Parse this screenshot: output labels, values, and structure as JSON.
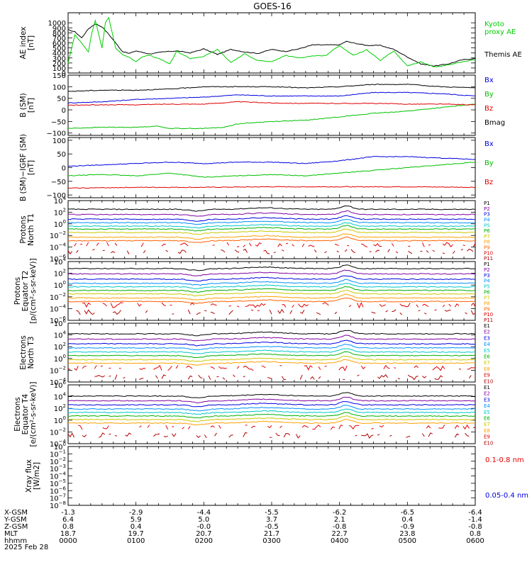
{
  "title": "GOES-16",
  "date": "2025 Feb 28",
  "chart_data": [
    {
      "type": "line",
      "ylabel": "AE index [nT]",
      "ylim": [
        0,
        1200
      ],
      "yticks": [
        "0",
        "100",
        "200",
        "300",
        "400",
        "500",
        "600",
        "700",
        "800",
        "900",
        "1000"
      ],
      "ytick_values": [
        0,
        100,
        200,
        300,
        400,
        500,
        600,
        700,
        800,
        900,
        1000
      ],
      "log": false,
      "legend": [
        {
          "label": "Kyoto",
          "color": "#00d000"
        },
        {
          "label": "proxy AE",
          "color": "#00d000"
        },
        {
          "label": "Themis AE",
          "color": "#000000"
        }
      ],
      "series": [
        {
          "name": "Themis AE",
          "color": "#000000",
          "x": [
            0,
            0.1,
            0.2,
            0.3,
            0.4,
            0.5,
            0.6,
            0.7,
            0.8,
            0.9,
            1.0,
            1.1,
            1.2,
            1.4,
            1.6,
            1.8,
            2.0,
            2.2,
            2.4,
            2.6,
            2.8,
            3.0,
            3.2,
            3.4,
            3.6,
            3.8,
            4.0,
            4.1,
            4.2,
            4.4,
            4.6,
            4.8,
            5.0,
            5.2,
            5.4,
            5.6,
            5.8,
            6.0
          ],
          "y": [
            860,
            820,
            700,
            880,
            980,
            920,
            770,
            600,
            430,
            390,
            440,
            410,
            380,
            420,
            440,
            400,
            480,
            370,
            470,
            420,
            390,
            470,
            430,
            480,
            560,
            560,
            560,
            630,
            600,
            550,
            550,
            470,
            320,
            180,
            140,
            180,
            260,
            290
          ]
        },
        {
          "name": "Kyoto proxy AE",
          "color": "#00d000",
          "x": [
            0,
            0.1,
            0.2,
            0.3,
            0.35,
            0.4,
            0.5,
            0.55,
            0.6,
            0.7,
            0.8,
            0.9,
            1.0,
            1.1,
            1.2,
            1.4,
            1.5,
            1.6,
            1.8,
            2.0,
            2.2,
            2.4,
            2.6,
            2.8,
            3.0,
            3.2,
            3.4,
            3.6,
            3.8,
            4.0,
            4.2,
            4.4,
            4.6,
            4.8,
            5.0,
            5.2,
            5.4,
            5.6,
            5.8,
            6.0
          ],
          "y": [
            200,
            760,
            600,
            420,
            800,
            1050,
            500,
            1000,
            1100,
            500,
            370,
            310,
            230,
            330,
            350,
            250,
            180,
            430,
            290,
            330,
            470,
            210,
            380,
            250,
            220,
            350,
            300,
            340,
            350,
            550,
            350,
            460,
            250,
            440,
            140,
            220,
            120,
            160,
            220,
            270
          ]
        }
      ]
    },
    {
      "type": "line",
      "ylabel": "B (SM) [nT]",
      "ylim": [
        -110,
        150
      ],
      "yticks": [
        "-100",
        "-50",
        "0",
        "50",
        "100",
        "150"
      ],
      "ytick_values": [
        -100,
        -50,
        0,
        50,
        100,
        150
      ],
      "log": false,
      "legend": [
        {
          "label": "Bx",
          "color": "#0000e0"
        },
        {
          "label": "By",
          "color": "#00c000"
        },
        {
          "label": "Bz",
          "color": "#e00000"
        },
        {
          "label": "Bmag",
          "color": "#000000"
        }
      ],
      "series": [
        {
          "name": "Bx",
          "color": "#0000e0",
          "x": [
            0,
            0.5,
            1.0,
            1.5,
            2.0,
            2.5,
            3.0,
            3.5,
            4.0,
            4.5,
            5.0,
            5.5,
            6.0
          ],
          "y": [
            30,
            35,
            45,
            50,
            55,
            65,
            60,
            60,
            60,
            75,
            75,
            70,
            60
          ]
        },
        {
          "name": "By",
          "color": "#00c000",
          "x": [
            0,
            0.5,
            1.0,
            1.3,
            1.5,
            2.0,
            2.3,
            2.5,
            3.0,
            3.5,
            4.0,
            4.5,
            5.0,
            5.5,
            6.0
          ],
          "y": [
            -80,
            -75,
            -75,
            -70,
            -80,
            -80,
            -75,
            -60,
            -50,
            -45,
            -30,
            -15,
            -5,
            10,
            25
          ]
        },
        {
          "name": "Bz",
          "color": "#e00000",
          "x": [
            0,
            0.5,
            1.0,
            1.5,
            2.0,
            2.5,
            3.0,
            3.5,
            4.0,
            4.5,
            5.0,
            5.5,
            6.0
          ],
          "y": [
            20,
            22,
            22,
            25,
            25,
            35,
            30,
            28,
            28,
            28,
            25,
            25,
            22
          ]
        },
        {
          "name": "Bmag",
          "color": "#000000",
          "x": [
            0,
            0.5,
            1.0,
            1.5,
            2.0,
            2.5,
            3.0,
            3.5,
            4.0,
            4.5,
            5.0,
            5.5,
            6.0
          ],
          "y": [
            80,
            85,
            85,
            90,
            100,
            100,
            100,
            95,
            100,
            110,
            110,
            100,
            95
          ]
        }
      ]
    },
    {
      "type": "line",
      "ylabel": "B (SM)-IGRF (SM) [nT]",
      "ylim": [
        -110,
        110
      ],
      "yticks": [
        "-100",
        "-50",
        "0",
        "50",
        "100"
      ],
      "ytick_values": [
        -100,
        -50,
        0,
        50,
        100
      ],
      "log": false,
      "legend": [
        {
          "label": "Bx",
          "color": "#0000e0"
        },
        {
          "label": "By",
          "color": "#00c000"
        },
        {
          "label": "Bz",
          "color": "#e00000"
        }
      ],
      "series": [
        {
          "name": "Bx",
          "color": "#0000e0",
          "x": [
            0,
            0.5,
            1.0,
            1.5,
            2.0,
            2.5,
            3.0,
            3.5,
            4.0,
            4.5,
            5.0,
            5.5,
            6.0
          ],
          "y": [
            5,
            10,
            15,
            20,
            15,
            20,
            20,
            15,
            25,
            40,
            40,
            35,
            30
          ]
        },
        {
          "name": "By",
          "color": "#00c000",
          "x": [
            0,
            0.5,
            1.0,
            1.5,
            2.0,
            2.5,
            3.0,
            3.5,
            4.0,
            4.5,
            5.0,
            5.5,
            6.0
          ],
          "y": [
            -30,
            -25,
            -30,
            -20,
            -35,
            -30,
            -25,
            -30,
            -20,
            -10,
            0,
            10,
            20
          ]
        },
        {
          "name": "Bz",
          "color": "#e00000",
          "x": [
            0,
            1.0,
            2.0,
            3.0,
            4.0,
            5.0,
            6.0
          ],
          "y": [
            -75,
            -72,
            -72,
            -70,
            -70,
            -70,
            -72
          ]
        }
      ]
    },
    {
      "type": "line",
      "ylabel": "Protons North T1",
      "ylim": [
        -6,
        4
      ],
      "yticks": [
        "10^-6",
        "10^-4",
        "10^-2",
        "10^0",
        "10^2",
        "10^4"
      ],
      "ytick_values": [
        -6,
        -4,
        -2,
        0,
        2,
        4
      ],
      "log": true,
      "legend": [
        {
          "label": "P1",
          "color": "#000000"
        },
        {
          "label": "P2",
          "color": "#8000a0"
        },
        {
          "label": "P3",
          "color": "#0000e0"
        },
        {
          "label": "P4",
          "color": "#0090ff"
        },
        {
          "label": "P5",
          "color": "#00c8c8"
        },
        {
          "label": "P6",
          "color": "#00b000"
        },
        {
          "label": "P7",
          "color": "#c8c800"
        },
        {
          "label": "P8",
          "color": "#ffa000"
        },
        {
          "label": "P9",
          "color": "#ff6000"
        },
        {
          "label": "P10",
          "color": "#e00000"
        },
        {
          "label": "P11",
          "color": "#b00000"
        }
      ],
      "levels": [
        2.5,
        1.6,
        0.8,
        0.2,
        -0.4,
        -0.9,
        -1.5,
        -2.3,
        -2.9,
        -3.6,
        -4.8
      ]
    },
    {
      "type": "line",
      "ylabel": "Protons Equator T2 [p/(cm^2-s-sr-keV)]",
      "ylim": [
        -6,
        4
      ],
      "yticks": [
        "10^-6",
        "10^-4",
        "10^-2",
        "10^0",
        "10^2",
        "10^4",
        "10^6"
      ],
      "ytick_values": [
        -6,
        -4,
        -2,
        0,
        2,
        4,
        6
      ],
      "log": true,
      "legend": [
        {
          "label": "P1",
          "color": "#000000"
        },
        {
          "label": "P2",
          "color": "#8000a0"
        },
        {
          "label": "P3",
          "color": "#0000e0"
        },
        {
          "label": "P4",
          "color": "#0090ff"
        },
        {
          "label": "P5",
          "color": "#00c8c8"
        },
        {
          "label": "P6",
          "color": "#00b000"
        },
        {
          "label": "P7",
          "color": "#c8c800"
        },
        {
          "label": "P8",
          "color": "#ffa000"
        },
        {
          "label": "P9",
          "color": "#ff6000"
        },
        {
          "label": "P10",
          "color": "#e00000"
        },
        {
          "label": "P11",
          "color": "#b00000"
        }
      ],
      "levels": [
        2.8,
        1.9,
        1.0,
        0.3,
        -0.3,
        -0.9,
        -1.5,
        -2.2,
        -2.8,
        -3.4,
        -4.6
      ]
    },
    {
      "type": "line",
      "ylabel": "Electrons North T3",
      "ylim": [
        -4,
        6
      ],
      "yticks": [
        "10^-4",
        "10^-2",
        "10^0",
        "10^2",
        "10^4",
        "10^6"
      ],
      "ytick_values": [
        -4,
        -2,
        0,
        2,
        4,
        6
      ],
      "log": true,
      "legend": [
        {
          "label": "E1",
          "color": "#000000"
        },
        {
          "label": "E2",
          "color": "#8000a0"
        },
        {
          "label": "E3",
          "color": "#0000e0"
        },
        {
          "label": "E4",
          "color": "#0090ff"
        },
        {
          "label": "E5",
          "color": "#00c8c8"
        },
        {
          "label": "E6",
          "color": "#00b000"
        },
        {
          "label": "E7",
          "color": "#c8c800"
        },
        {
          "label": "E8",
          "color": "#ffa000"
        },
        {
          "label": "E9",
          "color": "#e00000"
        },
        {
          "label": "E10",
          "color": "#b00000"
        }
      ],
      "levels": [
        4.2,
        3.3,
        2.5,
        1.8,
        1.1,
        0.5,
        -0.2,
        -0.8,
        -1.6,
        -3.2
      ]
    },
    {
      "type": "line",
      "ylabel": "Electrons Equator T4 [e/(cm^2-s-sr-keV)]",
      "ylim": [
        -4,
        6
      ],
      "yticks": [
        "10^-4",
        "10^-2",
        "10^0",
        "10^2",
        "10^4",
        "10^6"
      ],
      "ytick_values": [
        -4,
        -2,
        0,
        2,
        4,
        6
      ],
      "log": true,
      "legend": [
        {
          "label": "E1",
          "color": "#000000"
        },
        {
          "label": "E2",
          "color": "#8000a0"
        },
        {
          "label": "E3",
          "color": "#0000e0"
        },
        {
          "label": "E4",
          "color": "#0090ff"
        },
        {
          "label": "E5",
          "color": "#00c8c8"
        },
        {
          "label": "E6",
          "color": "#00b000"
        },
        {
          "label": "E7",
          "color": "#c8c800"
        },
        {
          "label": "E8",
          "color": "#ffa000"
        },
        {
          "label": "E9",
          "color": "#e00000"
        },
        {
          "label": "E10",
          "color": "#b00000"
        }
      ],
      "levels": [
        4.1,
        3.3,
        2.6,
        1.9,
        1.3,
        0.7,
        0.1,
        -0.5,
        -1.2,
        -2.6
      ]
    },
    {
      "type": "line",
      "ylabel": "Xray flux [W/m2]",
      "ylim": [
        -8,
        0
      ],
      "yticks": [
        "10^-8",
        "10^-7",
        "10^-6",
        "10^-5",
        "10^-4",
        "10^-3",
        "10^-2",
        "10^-1",
        "10^0"
      ],
      "ytick_values": [
        -8,
        -7,
        -6,
        -5,
        -4,
        -3,
        -2,
        -1,
        0
      ],
      "log": true,
      "legend": [
        {
          "label": "0.1-0.8 nm",
          "color": "#e00000"
        },
        {
          "label": "0.05-0.4 nm",
          "color": "#0000e0"
        }
      ],
      "series": []
    }
  ],
  "xaxis": {
    "ticks_hhmm": [
      "0000",
      "0100",
      "0200",
      "0300",
      "0400",
      "0500",
      "0600"
    ],
    "rows": [
      {
        "label": "X-GSM",
        "values": [
          "-1.3",
          "-2.9",
          "-4.4",
          "-5.5",
          "-6.2",
          "-6.5",
          "-6.4"
        ]
      },
      {
        "label": "Y-GSM",
        "values": [
          "6.4",
          "5.9",
          "5.0",
          "3.7",
          "2.1",
          "0.4",
          "-1.4"
        ]
      },
      {
        "label": "Z-GSM",
        "values": [
          "0.8",
          "0.4",
          "-0.0",
          "-0.5",
          "-0.8",
          "-0.9",
          "-0.8"
        ]
      },
      {
        "label": "MLT",
        "values": [
          "18.7",
          "19.7",
          "20.7",
          "21.7",
          "22.7",
          "23.8",
          "0.8"
        ]
      },
      {
        "label": "hhmm",
        "values": [
          "0000",
          "0100",
          "0200",
          "0300",
          "0400",
          "0500",
          "0600"
        ]
      }
    ]
  }
}
